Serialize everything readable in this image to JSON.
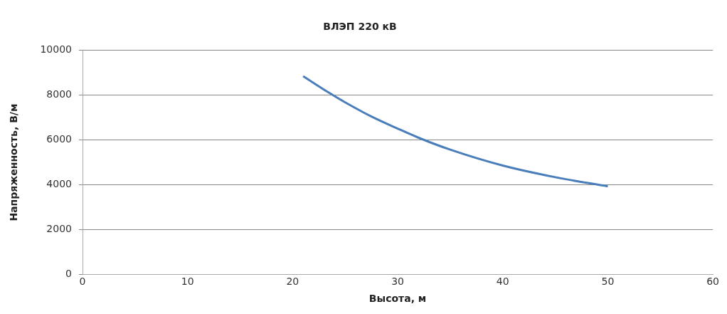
{
  "chart_data": {
    "type": "line",
    "title": "ВЛЭП 220 кВ",
    "xlabel": "Высота, м",
    "ylabel": "Напряженность, В/м",
    "series": [
      {
        "color": "#4a7ebb",
        "x": [
          21,
          23.5,
          25,
          27.5,
          30,
          32,
          35,
          40,
          45,
          50
        ],
        "values": [
          8850,
          8100,
          7680,
          7050,
          6510,
          6100,
          5570,
          4860,
          4340,
          3930
        ]
      }
    ],
    "xlim": [
      0,
      60
    ],
    "xticks": [
      0,
      10,
      20,
      30,
      40,
      50,
      60
    ],
    "ylim": [
      0,
      10000
    ],
    "yticks": [
      0,
      2000,
      4000,
      6000,
      8000,
      10000
    ],
    "grid": "y",
    "legend": false,
    "marker": "none",
    "line_style": "solid"
  }
}
